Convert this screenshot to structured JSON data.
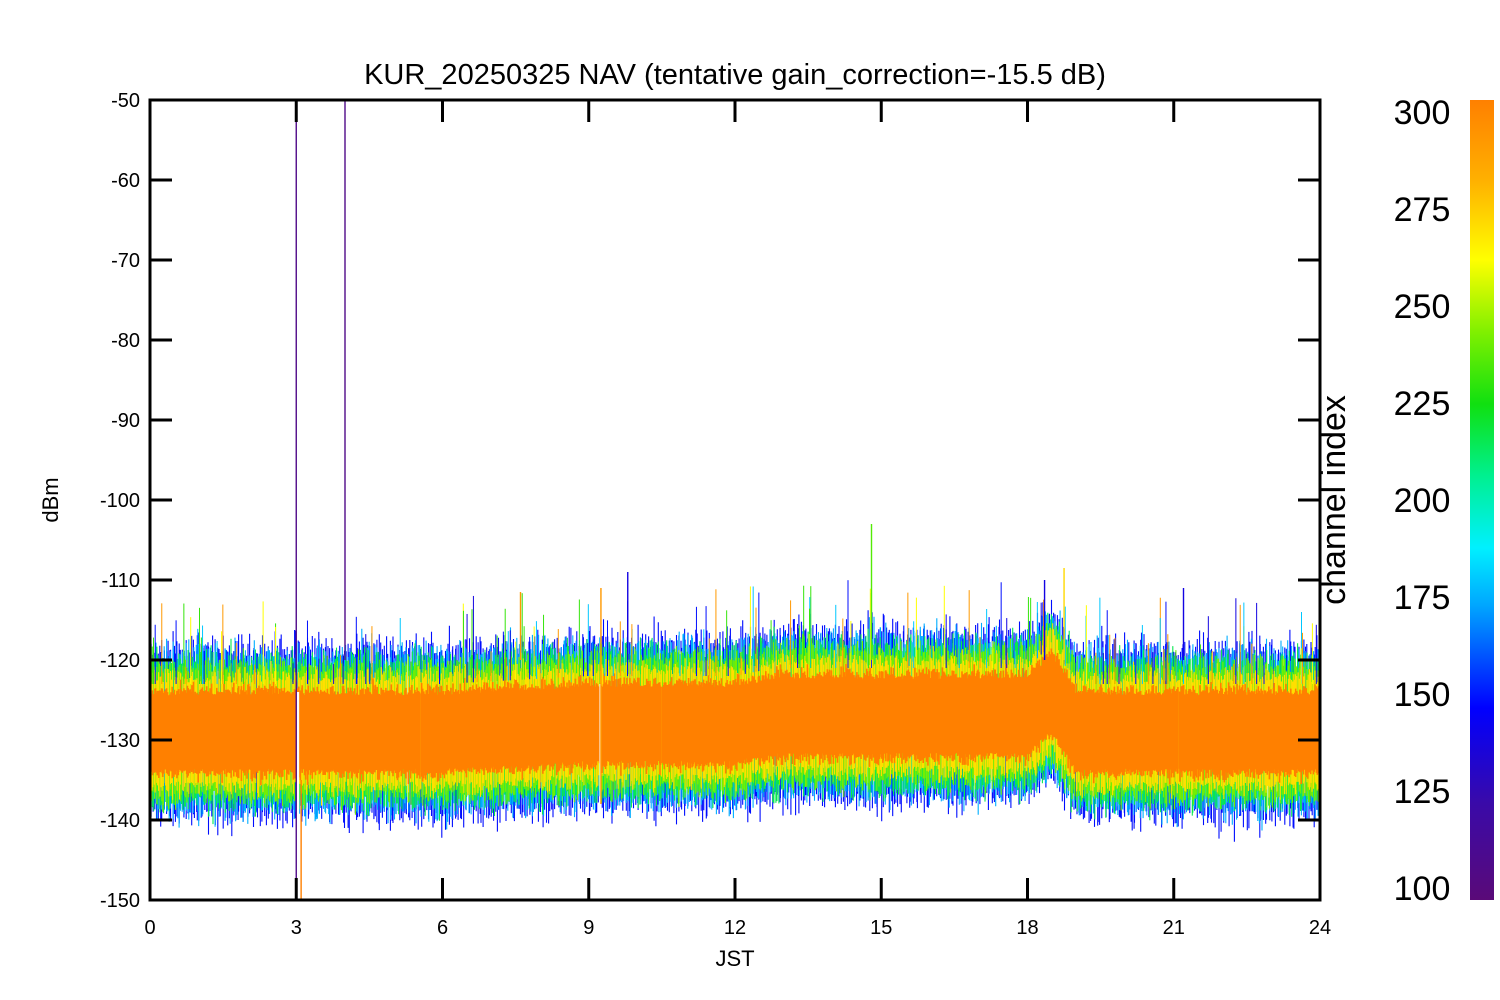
{
  "chart_data": {
    "type": "line",
    "title": "KUR_20250325 NAV (tentative gain_correction=-15.5 dB)",
    "xlabel": "JST",
    "ylabel": "dBm",
    "xlim": [
      0,
      24
    ],
    "ylim": [
      -150,
      -50
    ],
    "xticks": [
      "0",
      "3",
      "6",
      "9",
      "12",
      "15",
      "18",
      "21",
      "24"
    ],
    "yticks": [
      "-50",
      "-60",
      "-70",
      "-80",
      "-90",
      "-100",
      "-110",
      "-120",
      "-130",
      "-140",
      "-150"
    ],
    "grid": false,
    "baseline": {
      "x": [
        0,
        3,
        6,
        9,
        12,
        12.8,
        15,
        18,
        18.5,
        19,
        21,
        24
      ],
      "y": [
        -129,
        -129,
        -129,
        -128,
        -128,
        -127,
        -127,
        -127,
        -124,
        -129,
        -129,
        -129
      ]
    },
    "spikes": [
      {
        "x": 3.0,
        "y_top": -52,
        "y_bottom": -150,
        "channel": 108
      },
      {
        "x": 4.0,
        "y_top": -50,
        "y_bottom": -120,
        "channel": 108
      },
      {
        "x": 3.1,
        "y_top": -135,
        "y_bottom": -150,
        "channel": 300
      },
      {
        "x": 9.25,
        "y_top": -111,
        "y_bottom": -138,
        "channel": 290
      },
      {
        "x": 14.8,
        "y_top": -103,
        "y_bottom": -120,
        "channel": 235
      },
      {
        "x": 18.75,
        "y_top": -108.5,
        "y_bottom": -120,
        "channel": 270
      },
      {
        "x": 9.8,
        "y_top": -109,
        "y_bottom": -120,
        "channel": 140
      },
      {
        "x": 21.2,
        "y_top": -111,
        "y_bottom": -120,
        "channel": 140
      },
      {
        "x": 18.35,
        "y_top": -110,
        "y_bottom": -120,
        "channel": 140
      },
      {
        "x": 7.6,
        "y_top": -111.5,
        "y_bottom": -120,
        "channel": 290
      }
    ],
    "colorbar": {
      "label": "channel index",
      "min": 100,
      "max": 300,
      "ticks": [
        "100",
        "125",
        "150",
        "175",
        "200",
        "225",
        "250",
        "275",
        "300"
      ]
    }
  }
}
